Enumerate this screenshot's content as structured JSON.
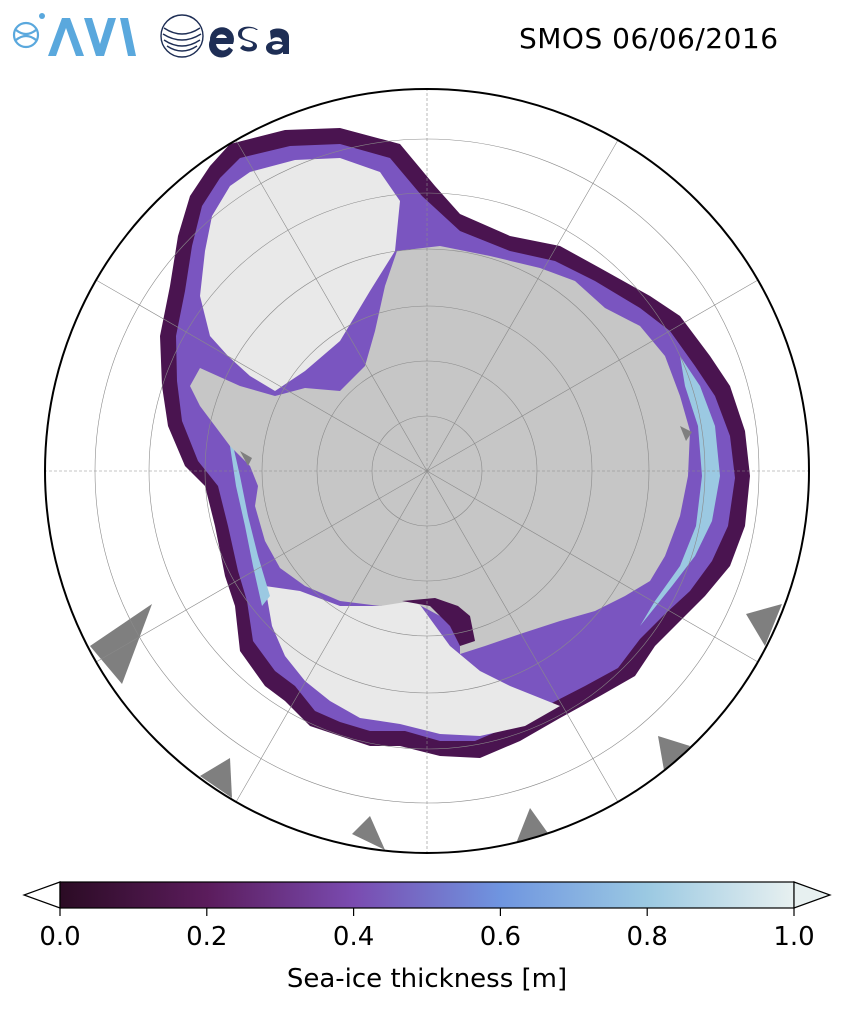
{
  "header": {
    "title": "SMOS 06/06/2016",
    "logos": [
      {
        "name": "awi-logo",
        "text": "AWI"
      },
      {
        "name": "esa-logo",
        "text": "esa"
      }
    ]
  },
  "map": {
    "projection": "south-polar-stereographic",
    "gridlines": true,
    "colors": {
      "land": "#c6c6c6",
      "open_water": "#ffffff",
      "thick_ice": "#e9e9e9",
      "no_data": "#7f7f7f",
      "boundary": "#000000"
    }
  },
  "colorbar": {
    "label": "Sea-ice thickness [m]",
    "min": 0.0,
    "max": 1.0,
    "extend": "both",
    "ticks": [
      "0.0",
      "0.2",
      "0.4",
      "0.6",
      "0.8",
      "1.0"
    ],
    "colormap_stops": [
      {
        "value": 0.0,
        "color": "#2b0b24"
      },
      {
        "value": 0.2,
        "color": "#5b1c5c"
      },
      {
        "value": 0.4,
        "color": "#7a4bb0"
      },
      {
        "value": 0.6,
        "color": "#6f95e0"
      },
      {
        "value": 0.8,
        "color": "#9bc9e2"
      },
      {
        "value": 1.0,
        "color": "#e7f0f0"
      }
    ],
    "under_color": "#ffffff",
    "over_color": "#e7f0f0"
  }
}
